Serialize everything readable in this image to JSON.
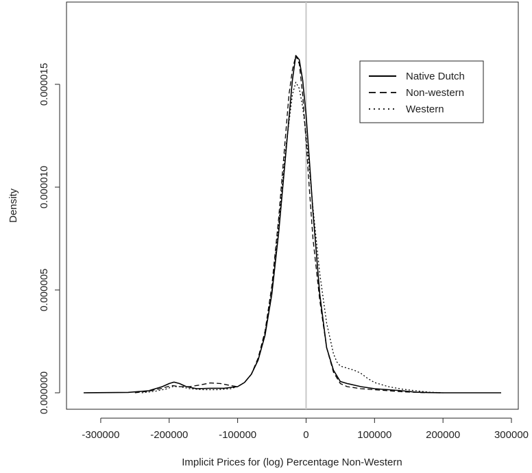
{
  "chart_data": {
    "type": "line",
    "title": "",
    "xlabel": "Implicit Prices for (log) Percentage Non-Western",
    "ylabel": "Density",
    "xlim": [
      -350000,
      310000
    ],
    "ylim": [
      -8e-07,
      1.9e-05
    ],
    "x_ticks": [
      -300000,
      -200000,
      -100000,
      0,
      100000,
      200000,
      300000
    ],
    "x_tick_labels": [
      "-300000",
      "-200000",
      "-100000",
      "0",
      "100000",
      "200000",
      "300000"
    ],
    "y_ticks": [
      0,
      5e-06,
      1e-05,
      1.5e-05
    ],
    "y_tick_labels": [
      "0.000000",
      "0.000005",
      "0.000010",
      "0.000015"
    ],
    "reference_line_x": 0,
    "legend_position": "top-right",
    "grid": false,
    "series": [
      {
        "name": "Native Dutch",
        "line_style": "solid",
        "color": "#000000",
        "x": [
          -325000,
          -260000,
          -230000,
          -210000,
          -200000,
          -193000,
          -185000,
          -175000,
          -160000,
          -140000,
          -120000,
          -100000,
          -90000,
          -80000,
          -70000,
          -60000,
          -50000,
          -40000,
          -30000,
          -20000,
          -15000,
          -10000,
          -5000,
          0,
          5000,
          10000,
          20000,
          30000,
          40000,
          50000,
          60000,
          80000,
          100000,
          120000,
          140000,
          160000,
          180000,
          200000,
          240000,
          285000
        ],
        "y": [
          0,
          2e-08,
          1e-07,
          3e-07,
          4.5e-07,
          5.2e-07,
          4.5e-07,
          3e-07,
          2e-07,
          2.2e-07,
          2.2e-07,
          3e-07,
          5e-07,
          9e-07,
          1.6e-06,
          2.8e-06,
          4.8e-06,
          7.8e-06,
          1.15e-05,
          1.52e-05,
          1.64e-05,
          1.62e-05,
          1.52e-05,
          1.35e-05,
          1.12e-05,
          8.8e-06,
          4.8e-06,
          2.2e-06,
          1.1e-06,
          5.5e-07,
          4.5e-07,
          3e-07,
          2e-07,
          1.5e-07,
          1e-07,
          3e-08,
          1e-08,
          0,
          0,
          0
        ]
      },
      {
        "name": "Non-western",
        "line_style": "dashed",
        "color": "#000000",
        "x": [
          -250000,
          -230000,
          -210000,
          -200000,
          -195000,
          -185000,
          -170000,
          -155000,
          -140000,
          -125000,
          -110000,
          -100000,
          -90000,
          -80000,
          -70000,
          -60000,
          -50000,
          -40000,
          -30000,
          -25000,
          -20000,
          -15000,
          -10000,
          -5000,
          0,
          5000,
          10000,
          20000,
          30000,
          40000,
          50000,
          60000,
          80000,
          100000,
          120000,
          140000,
          170000,
          200000
        ],
        "y": [
          0,
          8e-08,
          2.2e-07,
          3.2e-07,
          3.5e-07,
          3e-07,
          3e-07,
          3.8e-07,
          4.8e-07,
          4.5e-07,
          3.5e-07,
          3e-07,
          5e-07,
          9e-07,
          1.7e-06,
          3e-06,
          5.2e-06,
          8.5e-06,
          1.25e-05,
          1.45e-05,
          1.57e-05,
          1.64e-05,
          1.6e-05,
          1.45e-05,
          1.22e-05,
          9.8e-06,
          7.5e-06,
          4.5e-06,
          2.2e-06,
          1e-06,
          4.5e-07,
          3e-07,
          2e-07,
          1.5e-07,
          1e-07,
          5e-08,
          1e-08,
          0
        ]
      },
      {
        "name": "Western",
        "line_style": "dotted",
        "color": "#000000",
        "x": [
          -240000,
          -220000,
          -205000,
          -195000,
          -185000,
          -170000,
          -150000,
          -130000,
          -110000,
          -100000,
          -90000,
          -80000,
          -70000,
          -60000,
          -50000,
          -40000,
          -30000,
          -20000,
          -15000,
          -10000,
          -5000,
          0,
          5000,
          10000,
          20000,
          30000,
          40000,
          45000,
          50000,
          60000,
          70000,
          80000,
          90000,
          100000,
          120000,
          140000,
          160000,
          180000,
          200000
        ],
        "y": [
          0,
          8e-08,
          1.8e-07,
          3e-07,
          3e-07,
          2e-07,
          1.5e-07,
          1.5e-07,
          2e-07,
          3e-07,
          5e-07,
          9e-07,
          1.6e-06,
          2.9e-06,
          5e-06,
          8.2e-06,
          1.18e-05,
          1.45e-05,
          1.51e-05,
          1.48e-05,
          1.39e-05,
          1.25e-05,
          1.08e-05,
          9e-06,
          5.8e-06,
          3.4e-06,
          1.9e-06,
          1.5e-06,
          1.3e-06,
          1.2e-06,
          1.1e-06,
          9.5e-07,
          7e-07,
          5e-07,
          3e-07,
          1.8e-07,
          1e-07,
          3e-08,
          0
        ]
      }
    ]
  }
}
